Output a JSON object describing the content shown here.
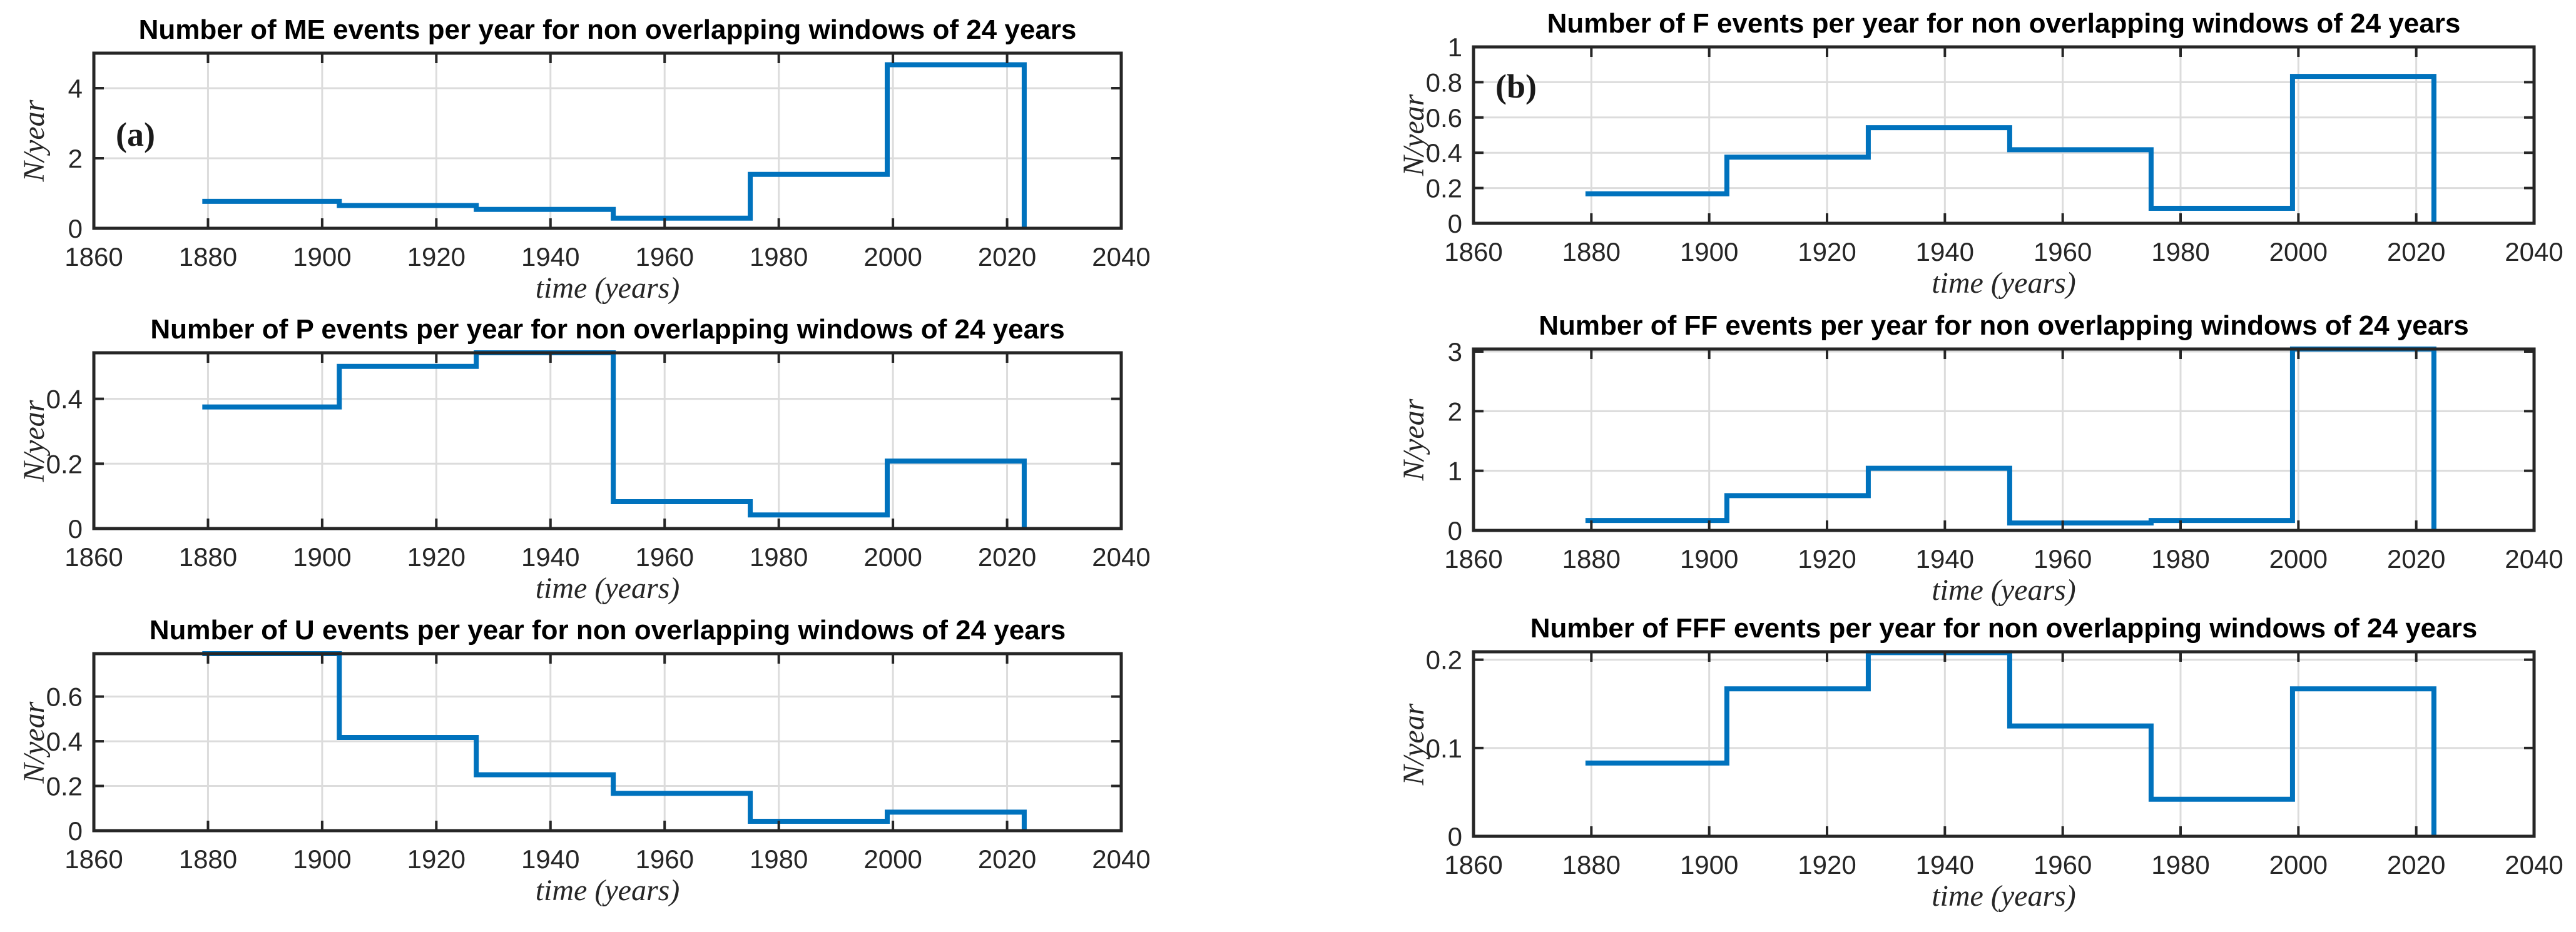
{
  "figure": {
    "background": "#ffffff",
    "line_color": "#0072BD",
    "frame_color": "#262626",
    "grid_color": "#DCDCDC",
    "tick_label_color": "#262626",
    "title_color": "#000000"
  },
  "chart_data": [
    {
      "id": "ME",
      "type": "line",
      "subtype": "stairs",
      "title": "Number of ME events per year for non overlapping windows of 24 years",
      "xlabel": "time (years)",
      "ylabel": "N/year",
      "annotation": "(a)",
      "window_edges_years": [
        1879,
        1903,
        1927,
        1951,
        1975,
        1999,
        2023
      ],
      "rates_per_year": [
        0.77,
        0.65,
        0.54,
        0.29,
        1.54,
        4.67
      ],
      "xlim": [
        1860,
        2040
      ],
      "ylim": [
        0,
        5
      ],
      "xticks": [
        1860,
        1880,
        1900,
        1920,
        1940,
        1960,
        1980,
        2000,
        2020,
        2040
      ],
      "yticks": [
        0,
        2,
        4
      ],
      "xtick_labels": [
        "1860",
        "1880",
        "1900",
        "1920",
        "1940",
        "1960",
        "1980",
        "2000",
        "2020",
        "2040"
      ],
      "ytick_labels": [
        "0",
        "2",
        "4"
      ],
      "grid": true,
      "legend": "none"
    },
    {
      "id": "P",
      "type": "line",
      "subtype": "stairs",
      "title": "Number of P events per year for non overlapping windows of 24 years",
      "xlabel": "time (years)",
      "ylabel": "N/year",
      "annotation": "",
      "window_edges_years": [
        1879,
        1903,
        1927,
        1951,
        1975,
        1999,
        2023
      ],
      "rates_per_year": [
        0.375,
        0.5,
        0.542,
        0.083,
        0.042,
        0.208
      ],
      "xlim": [
        1860,
        2040
      ],
      "ylim": [
        0,
        0.542
      ],
      "xticks": [
        1860,
        1880,
        1900,
        1920,
        1940,
        1960,
        1980,
        2000,
        2020,
        2040
      ],
      "yticks": [
        0,
        0.2,
        0.4
      ],
      "xtick_labels": [
        "1860",
        "1880",
        "1900",
        "1920",
        "1940",
        "1960",
        "1980",
        "2000",
        "2020",
        "2040"
      ],
      "ytick_labels": [
        "0",
        "0.2",
        "0.4"
      ],
      "grid": true,
      "legend": "none"
    },
    {
      "id": "U",
      "type": "line",
      "subtype": "stairs",
      "title": "Number of U events per year for non overlapping windows of 24 years",
      "xlabel": "time (years)",
      "ylabel": "N/year",
      "annotation": "",
      "window_edges_years": [
        1879,
        1903,
        1927,
        1951,
        1975,
        1999,
        2023
      ],
      "rates_per_year": [
        0.792,
        0.417,
        0.25,
        0.167,
        0.042,
        0.083
      ],
      "xlim": [
        1860,
        2040
      ],
      "ylim": [
        0,
        0.792
      ],
      "xticks": [
        1860,
        1880,
        1900,
        1920,
        1940,
        1960,
        1980,
        2000,
        2020,
        2040
      ],
      "yticks": [
        0,
        0.2,
        0.4,
        0.6
      ],
      "xtick_labels": [
        "1860",
        "1880",
        "1900",
        "1920",
        "1940",
        "1960",
        "1980",
        "2000",
        "2020",
        "2040"
      ],
      "ytick_labels": [
        "0",
        "0.2",
        "0.4",
        "0.6"
      ],
      "grid": true,
      "legend": "none"
    },
    {
      "id": "F",
      "type": "line",
      "subtype": "stairs",
      "title": "Number of F events per year for non overlapping windows of 24 years",
      "xlabel": "time (years)",
      "ylabel": "N/year",
      "annotation": "(b)",
      "window_edges_years": [
        1879,
        1903,
        1927,
        1951,
        1975,
        1999,
        2023
      ],
      "rates_per_year": [
        0.167,
        0.375,
        0.542,
        0.417,
        0.085,
        0.833
      ],
      "xlim": [
        1860,
        2040
      ],
      "ylim": [
        0,
        1
      ],
      "xticks": [
        1860,
        1880,
        1900,
        1920,
        1940,
        1960,
        1980,
        2000,
        2020,
        2040
      ],
      "yticks": [
        0,
        0.2,
        0.4,
        0.6,
        0.8,
        1
      ],
      "xtick_labels": [
        "1860",
        "1880",
        "1900",
        "1920",
        "1940",
        "1960",
        "1980",
        "2000",
        "2020",
        "2040"
      ],
      "ytick_labels": [
        "0",
        "0.2",
        "0.4",
        "0.6",
        "0.8",
        "1"
      ],
      "grid": true,
      "legend": "none"
    },
    {
      "id": "FF",
      "type": "line",
      "subtype": "stairs",
      "title": "Number of FF events per year for non overlapping windows of 24 years",
      "xlabel": "time (years)",
      "ylabel": "N/year",
      "annotation": "",
      "window_edges_years": [
        1879,
        1903,
        1927,
        1951,
        1975,
        1999,
        2023
      ],
      "rates_per_year": [
        0.167,
        0.583,
        1.042,
        0.125,
        0.167,
        3.042
      ],
      "xlim": [
        1860,
        2040
      ],
      "ylim": [
        0,
        3.042
      ],
      "xticks": [
        1860,
        1880,
        1900,
        1920,
        1940,
        1960,
        1980,
        2000,
        2020,
        2040
      ],
      "yticks": [
        0,
        1,
        2,
        3
      ],
      "xtick_labels": [
        "1860",
        "1880",
        "1900",
        "1920",
        "1940",
        "1960",
        "1980",
        "2000",
        "2020",
        "2040"
      ],
      "ytick_labels": [
        "0",
        "1",
        "2",
        "3"
      ],
      "grid": true,
      "legend": "none"
    },
    {
      "id": "FFF",
      "type": "line",
      "subtype": "stairs",
      "title": "Number of FFF events per year for non overlapping windows of 24 years",
      "xlabel": "time (years)",
      "ylabel": "N/year",
      "annotation": "",
      "window_edges_years": [
        1879,
        1903,
        1927,
        1951,
        1975,
        1999,
        2023
      ],
      "rates_per_year": [
        0.083,
        0.167,
        0.208,
        0.125,
        0.042,
        0.167
      ],
      "xlim": [
        1860,
        2040
      ],
      "ylim": [
        0,
        0.209
      ],
      "xticks": [
        1860,
        1880,
        1900,
        1920,
        1940,
        1960,
        1980,
        2000,
        2020,
        2040
      ],
      "yticks": [
        0,
        0.1,
        0.2
      ],
      "xtick_labels": [
        "1860",
        "1880",
        "1900",
        "1920",
        "1940",
        "1960",
        "1980",
        "2000",
        "2020",
        "2040"
      ],
      "ytick_labels": [
        "0",
        "0.1",
        "0.2"
      ],
      "grid": true,
      "legend": "none"
    }
  ]
}
